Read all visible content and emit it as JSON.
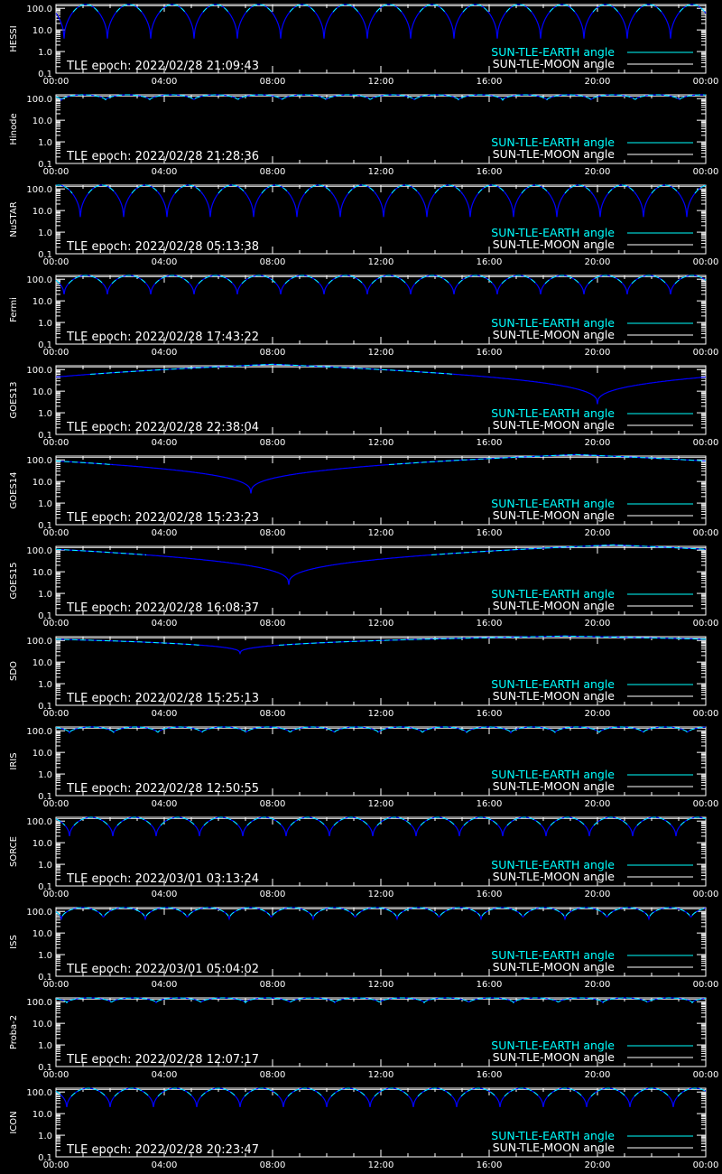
{
  "colors": {
    "background": "#000000",
    "axes": "#ffffff",
    "sun_earth": "#00ffff",
    "earth_dip": "#0000ff",
    "sun_moon": "#ffffff"
  },
  "x_ticks": [
    "00:00",
    "04:00",
    "08:00",
    "12:00",
    "16:00",
    "20:00",
    "00:00"
  ],
  "y_ticks": [
    "100.0",
    "10.0",
    "1.0",
    "0.1"
  ],
  "legend": {
    "sun_earth": "SUN-TLE-EARTH angle",
    "sun_moon": "SUN-TLE-MOON angle"
  },
  "chart_data": [
    {
      "type": "line",
      "ylabel": "HESSI",
      "epoch": "TLE epoch: 2022/02/28 21:09:43",
      "xlim": [
        0,
        24
      ],
      "ylim": [
        0.1,
        150
      ],
      "yscale": "log",
      "legend_position": "bottom-right",
      "pattern": {
        "kind": "orbital",
        "period_hours": 1.6,
        "min_angle": 4.0,
        "phase_hours": 0.3
      }
    },
    {
      "type": "line",
      "ylabel": "Hinode",
      "epoch": "TLE epoch: 2022/02/28 21:28:36",
      "xlim": [
        0,
        24
      ],
      "ylim": [
        0.1,
        150
      ],
      "yscale": "log",
      "legend_position": "bottom-right",
      "pattern": {
        "kind": "orbital",
        "period_hours": 1.63,
        "min_angle": 85.0,
        "phase_hours": 0.2
      }
    },
    {
      "type": "line",
      "ylabel": "NuSTAR",
      "epoch": "TLE epoch: 2022/02/28 05:13:38",
      "xlim": [
        0,
        24
      ],
      "ylim": [
        0.1,
        150
      ],
      "yscale": "log",
      "legend_position": "bottom-right",
      "pattern": {
        "kind": "orbital",
        "period_hours": 1.6,
        "min_angle": 5.0,
        "phase_hours": 0.9
      }
    },
    {
      "type": "line",
      "ylabel": "Fermi",
      "epoch": "TLE epoch: 2022/02/28 17:43:22",
      "xlim": [
        0,
        24
      ],
      "ylim": [
        0.1,
        150
      ],
      "yscale": "log",
      "legend_position": "bottom-right",
      "pattern": {
        "kind": "orbital",
        "period_hours": 1.6,
        "min_angle": 20.0,
        "phase_hours": 0.3
      }
    },
    {
      "type": "line",
      "ylabel": "GOES13",
      "epoch": "TLE epoch: 2022/02/28 22:38:04",
      "xlim": [
        0,
        24
      ],
      "ylim": [
        0.1,
        150
      ],
      "yscale": "log",
      "legend_position": "bottom-right",
      "pattern": {
        "kind": "geo",
        "dip_hour": 20.0,
        "min_angle": 2.5,
        "max_angle": 175
      }
    },
    {
      "type": "line",
      "ylabel": "GOES14",
      "epoch": "TLE epoch: 2022/02/28 15:23:23",
      "xlim": [
        0,
        24
      ],
      "ylim": [
        0.1,
        150
      ],
      "yscale": "log",
      "legend_position": "bottom-right",
      "pattern": {
        "kind": "geo",
        "dip_hour": 7.2,
        "min_angle": 2.8,
        "max_angle": 175
      }
    },
    {
      "type": "line",
      "ylabel": "GOES15",
      "epoch": "TLE epoch: 2022/02/28 16:08:37",
      "xlim": [
        0,
        24
      ],
      "ylim": [
        0.1,
        150
      ],
      "yscale": "log",
      "legend_position": "bottom-right",
      "pattern": {
        "kind": "geo",
        "dip_hour": 8.6,
        "min_angle": 2.5,
        "max_angle": 175
      }
    },
    {
      "type": "line",
      "ylabel": "SDO",
      "epoch": "TLE epoch: 2022/02/28 15:25:13",
      "xlim": [
        0,
        24
      ],
      "ylim": [
        0.1,
        150
      ],
      "yscale": "log",
      "legend_position": "bottom-right",
      "pattern": {
        "kind": "geo",
        "dip_hour": 6.8,
        "min_angle": 25.0,
        "max_angle": 160
      }
    },
    {
      "type": "line",
      "ylabel": "IRIS",
      "epoch": "TLE epoch: 2022/02/28 12:50:55",
      "xlim": [
        0,
        24
      ],
      "ylim": [
        0.1,
        150
      ],
      "yscale": "log",
      "legend_position": "bottom-right",
      "pattern": {
        "kind": "orbital",
        "period_hours": 1.63,
        "min_angle": 80.0,
        "phase_hours": 0.5
      }
    },
    {
      "type": "line",
      "ylabel": "SORCE",
      "epoch": "TLE epoch: 2022/03/01 03:13:24",
      "xlim": [
        0,
        24
      ],
      "ylim": [
        0.1,
        150
      ],
      "yscale": "log",
      "legend_position": "bottom-right",
      "pattern": {
        "kind": "orbital",
        "period_hours": 1.6,
        "min_angle": 20.0,
        "phase_hours": 0.5
      }
    },
    {
      "type": "line",
      "ylabel": "ISS",
      "epoch": "TLE epoch: 2022/03/01 05:04:02",
      "xlim": [
        0,
        24
      ],
      "ylim": [
        0.1,
        150
      ],
      "yscale": "log",
      "legend_position": "bottom-right",
      "pattern": {
        "kind": "orbital",
        "period_hours": 1.55,
        "min_angle": 45.0,
        "phase_hours": 0.2
      }
    },
    {
      "type": "line",
      "ylabel": "Proba-2",
      "epoch": "TLE epoch: 2022/02/28 12:07:17",
      "xlim": [
        0,
        24
      ],
      "ylim": [
        0.1,
        150
      ],
      "yscale": "log",
      "legend_position": "bottom-right",
      "pattern": {
        "kind": "orbital",
        "period_hours": 1.65,
        "min_angle": 90.0,
        "phase_hours": 0.4
      }
    },
    {
      "type": "line",
      "ylabel": "ICON",
      "epoch": "TLE epoch: 2022/02/28 20:23:47",
      "xlim": [
        0,
        24
      ],
      "ylim": [
        0.1,
        150
      ],
      "yscale": "log",
      "legend_position": "bottom-right",
      "pattern": {
        "kind": "orbital",
        "period_hours": 1.6,
        "min_angle": 20.0,
        "phase_hours": 0.4
      }
    }
  ]
}
